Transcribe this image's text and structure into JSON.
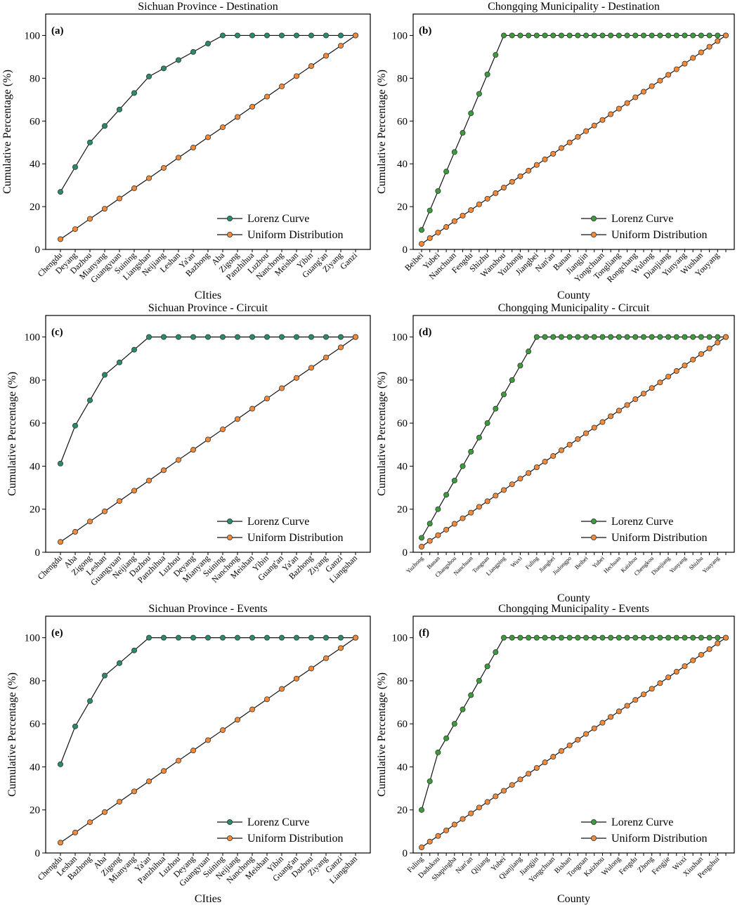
{
  "chart_data": [
    {
      "type": "line",
      "title": "Sichuan Province - Destination",
      "panel_label": "(a)",
      "xlabel": "CIties",
      "ylabel": "Cumulative Percentage (%)",
      "categories": [
        "Chengdu",
        "Deyang",
        "Dazhou",
        "Mianyang",
        "Guangyuan",
        "Suining",
        "Liangshan",
        "Neijiang",
        "Leshan",
        "Ya'an",
        "Bazhong",
        "Aba",
        "Zigong",
        "Panzhihua",
        "Luzhou",
        "Nanchong",
        "Meishan",
        "Yibin",
        "Guang'an",
        "Ziyang",
        "Ganzi"
      ],
      "series": [
        {
          "name": "Lorenz Curve",
          "color": "#2a8a6e",
          "values": [
            26.9,
            38.5,
            50,
            57.7,
            65.4,
            73.1,
            80.8,
            84.6,
            88.5,
            92.3,
            96.2,
            100,
            100,
            100,
            100,
            100,
            100,
            100,
            100,
            100,
            100
          ]
        },
        {
          "name": "Uniform Distribution",
          "color": "#f28a3a",
          "values": [
            4.8,
            9.5,
            14.3,
            19.0,
            23.8,
            28.6,
            33.3,
            38.1,
            42.9,
            47.6,
            52.4,
            57.1,
            61.9,
            66.7,
            71.4,
            76.2,
            81.0,
            85.7,
            90.5,
            95.2,
            100
          ]
        }
      ],
      "ylim": [
        0,
        110
      ],
      "yticks": [
        0,
        20,
        40,
        60,
        80,
        100
      ],
      "legend": "lower right"
    },
    {
      "type": "line",
      "title": "Chongqing Municipality - Destination",
      "panel_label": "(b)",
      "xlabel": "County",
      "ylabel": "Cumulative Percentage (%)",
      "categories": [
        "Beibei",
        null,
        "Yubei",
        null,
        "Nanchuan",
        null,
        "Fengdu",
        null,
        "Shizhu",
        null,
        "Wanshou",
        null,
        "Yuzhong",
        null,
        "Jiangbei",
        null,
        "Nan'an",
        null,
        "Banan",
        null,
        "Jiangjin",
        null,
        "Yongchuan",
        null,
        "Tongliang",
        null,
        "Rongchang",
        null,
        "Wulong",
        null,
        "Dianjiang",
        null,
        "Yunyang",
        null,
        "Wushan",
        null,
        "Youyang",
        null
      ],
      "series": [
        {
          "name": "Lorenz Curve",
          "color": "#3c9c3c",
          "values": [
            9.1,
            18.2,
            27.3,
            36.4,
            45.5,
            54.5,
            63.6,
            72.7,
            81.8,
            90.9,
            100,
            100,
            100,
            100,
            100,
            100,
            100,
            100,
            100,
            100,
            100,
            100,
            100,
            100,
            100,
            100,
            100,
            100,
            100,
            100,
            100,
            100,
            100,
            100,
            100,
            100,
            100,
            100
          ]
        },
        {
          "name": "Uniform Distribution",
          "color": "#f28a3a",
          "values": [
            2.6,
            5.3,
            7.9,
            10.5,
            13.2,
            15.8,
            18.4,
            21.1,
            23.7,
            26.3,
            28.9,
            31.6,
            34.2,
            36.8,
            39.5,
            42.1,
            44.7,
            47.4,
            50,
            52.6,
            55.3,
            57.9,
            60.5,
            63.2,
            65.8,
            68.4,
            71.1,
            73.7,
            76.3,
            78.9,
            81.6,
            84.2,
            86.8,
            89.5,
            92.1,
            94.7,
            97.4,
            100
          ]
        }
      ],
      "ylim": [
        0,
        110
      ],
      "yticks": [
        0,
        20,
        40,
        60,
        80,
        100
      ],
      "legend": "lower right"
    },
    {
      "type": "line",
      "title": "Sichuan Province - Circuit",
      "panel_label": "(c)",
      "ylabel": "Cumulative Percentage (%)",
      "categories": [
        "Chengdu",
        "Aba",
        "Zigong",
        "Leshan",
        "Guangyuan",
        "Neijiang",
        "Dazhou",
        "Panzhihua",
        "Luzhou",
        "Deyang",
        "Mianyang",
        "Suining",
        "Nanchong",
        "Meishan",
        "Yibin",
        "Guang'an",
        "Ya'an",
        "Bazhong",
        "Ziyang",
        "Ganzi",
        "Liangshan"
      ],
      "series": [
        {
          "name": "Lorenz Curve",
          "color": "#2a8a6e",
          "values": [
            41.2,
            58.8,
            70.6,
            82.4,
            88.2,
            94.1,
            100,
            100,
            100,
            100,
            100,
            100,
            100,
            100,
            100,
            100,
            100,
            100,
            100,
            100,
            100
          ]
        },
        {
          "name": "Uniform Distribution",
          "color": "#f28a3a",
          "values": [
            4.8,
            9.5,
            14.3,
            19.0,
            23.8,
            28.6,
            33.3,
            38.1,
            42.9,
            47.6,
            52.4,
            57.1,
            61.9,
            66.7,
            71.4,
            76.2,
            81.0,
            85.7,
            90.5,
            95.2,
            100
          ]
        }
      ],
      "ylim": [
        0,
        110
      ],
      "yticks": [
        0,
        20,
        40,
        60,
        80,
        100
      ],
      "legend": "lower right"
    },
    {
      "type": "line",
      "title": "Chongqing Municipality - Circuit",
      "panel_label": "(d)",
      "xlabel": "County",
      "ylabel": "Cumulative Percentage (%)",
      "categories": [
        "Yuzhong",
        null,
        "Banan",
        null,
        "Changshou",
        null,
        "Nanchuan",
        null,
        "Tongnan",
        null,
        "Liangping",
        null,
        "Wuxi",
        null,
        "Fuling",
        null,
        "Jiangbei",
        null,
        "Jiulongpo",
        null,
        "Beibei",
        null,
        "Yubei",
        null,
        "Hechuan",
        null,
        "Kaizhou",
        null,
        "Chengkou",
        null,
        "Dianjiang",
        null,
        "Yunyang",
        null,
        "Shizhu",
        null,
        "Youyang",
        null
      ],
      "series": [
        {
          "name": "Lorenz Curve",
          "color": "#3c9c3c",
          "values": [
            6.7,
            13.3,
            20,
            26.7,
            33.3,
            40,
            46.7,
            53.3,
            60,
            66.7,
            73.3,
            80,
            86.7,
            93.3,
            100,
            100,
            100,
            100,
            100,
            100,
            100,
            100,
            100,
            100,
            100,
            100,
            100,
            100,
            100,
            100,
            100,
            100,
            100,
            100,
            100,
            100,
            100,
            100
          ]
        },
        {
          "name": "Uniform Distribution",
          "color": "#f28a3a",
          "values": [
            2.6,
            5.3,
            7.9,
            10.5,
            13.2,
            15.8,
            18.4,
            21.1,
            23.7,
            26.3,
            28.9,
            31.6,
            34.2,
            36.8,
            39.5,
            42.1,
            44.7,
            47.4,
            50,
            52.6,
            55.3,
            57.9,
            60.5,
            63.2,
            65.8,
            68.4,
            71.1,
            73.7,
            76.3,
            78.9,
            81.6,
            84.2,
            86.8,
            89.5,
            92.1,
            94.7,
            97.4,
            100
          ]
        }
      ],
      "ylim": [
        0,
        110
      ],
      "yticks": [
        0,
        20,
        40,
        60,
        80,
        100
      ],
      "legend": "lower right"
    },
    {
      "type": "line",
      "title": "Sichuan Province - Events",
      "panel_label": "(e)",
      "xlabel": "CIties",
      "ylabel": "Cumulative Percentage (%)",
      "categories": [
        "Chengdu",
        "Leshan",
        "Bazhong",
        "Aba",
        "Zigong",
        "Mianyang",
        "Ya'an",
        "Panzhihua",
        "Luzhou",
        "Deyang",
        "Guangyuan",
        "Suining",
        "Neijiang",
        "Nanchong",
        "Meishan",
        "Yibin",
        "Guang'an",
        "Dazhou",
        "Ziyang",
        "Ganzi",
        "Liangshan"
      ],
      "series": [
        {
          "name": "Lorenz Curve",
          "color": "#2a8a6e",
          "values": [
            41.2,
            58.8,
            70.6,
            82.4,
            88.2,
            94.1,
            100,
            100,
            100,
            100,
            100,
            100,
            100,
            100,
            100,
            100,
            100,
            100,
            100,
            100,
            100
          ]
        },
        {
          "name": "Uniform Distribution",
          "color": "#f28a3a",
          "values": [
            4.8,
            9.5,
            14.3,
            19.0,
            23.8,
            28.6,
            33.3,
            38.1,
            42.9,
            47.6,
            52.4,
            57.1,
            61.9,
            66.7,
            71.4,
            76.2,
            81.0,
            85.7,
            90.5,
            95.2,
            100
          ]
        }
      ],
      "ylim": [
        0,
        110
      ],
      "yticks": [
        0,
        20,
        40,
        60,
        80,
        100
      ],
      "legend": "lower right"
    },
    {
      "type": "line",
      "title": "Chongqing Municipality - Events",
      "panel_label": "(f)",
      "xlabel": "County",
      "ylabel": "Cumulative Percentage (%)",
      "categories": [
        "Fuling",
        null,
        "Dadukou",
        null,
        "Shapingba",
        null,
        "Nan'an",
        null,
        "Qijiang",
        null,
        "Yubei",
        null,
        "Qianjiang",
        null,
        "Jiangjin",
        null,
        "Yongchuan",
        null,
        "Bishan",
        null,
        "Tongnan",
        null,
        "Kaizhou",
        null,
        "Wulong",
        null,
        "Fengdu",
        null,
        "Zhong",
        null,
        "Fengjie",
        null,
        "Wuxi",
        null,
        "Xiushan",
        null,
        "Pengshui",
        null
      ],
      "series": [
        {
          "name": "Lorenz Curve",
          "color": "#3c9c3c",
          "values": [
            20,
            33.3,
            46.7,
            53.3,
            60,
            66.7,
            73.3,
            80,
            86.7,
            93.3,
            100,
            100,
            100,
            100,
            100,
            100,
            100,
            100,
            100,
            100,
            100,
            100,
            100,
            100,
            100,
            100,
            100,
            100,
            100,
            100,
            100,
            100,
            100,
            100,
            100,
            100,
            100,
            100
          ]
        },
        {
          "name": "Uniform Distribution",
          "color": "#f28a3a",
          "values": [
            2.6,
            5.3,
            7.9,
            10.5,
            13.2,
            15.8,
            18.4,
            21.1,
            23.7,
            26.3,
            28.9,
            31.6,
            34.2,
            36.8,
            39.5,
            42.1,
            44.7,
            47.4,
            50,
            52.6,
            55.3,
            57.9,
            60.5,
            63.2,
            65.8,
            68.4,
            71.1,
            73.7,
            76.3,
            78.9,
            81.6,
            84.2,
            86.8,
            89.5,
            92.1,
            94.7,
            97.4,
            100
          ]
        }
      ],
      "ylim": [
        0,
        110
      ],
      "yticks": [
        0,
        20,
        40,
        60,
        80,
        100
      ],
      "legend": "lower right"
    }
  ]
}
